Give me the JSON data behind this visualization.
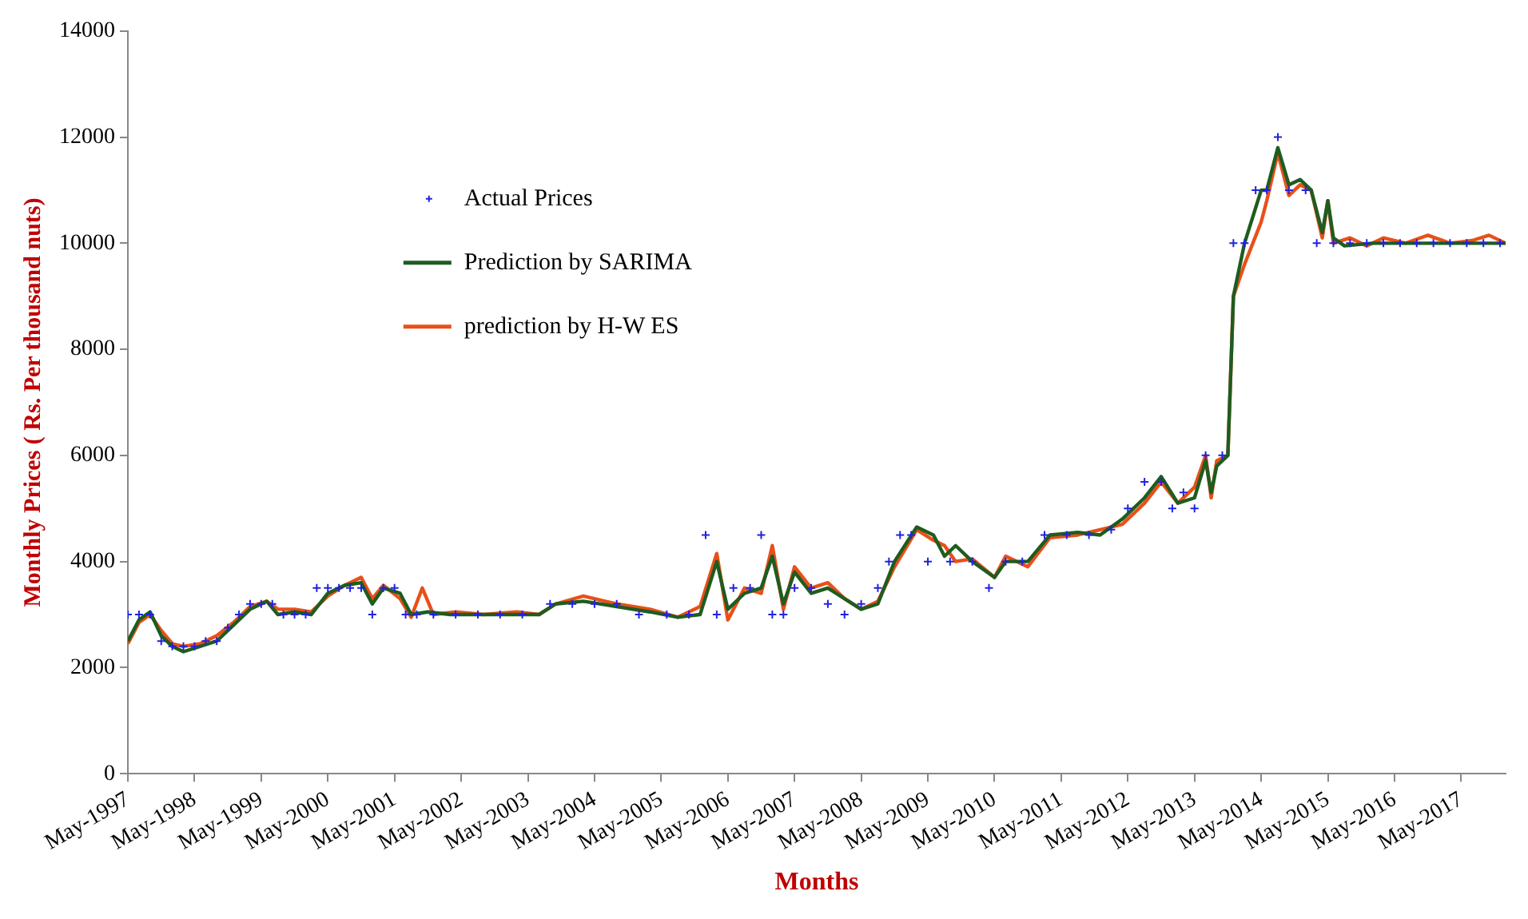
{
  "chart_data": {
    "type": "line",
    "xlabel": "Months",
    "ylabel": "Monthly Prices ( Rs. Per thousand nuts)",
    "xlim": [
      "1997-05",
      "2018-01"
    ],
    "xticks": [
      {
        "value": "1997-05",
        "label": "May-1997"
      },
      {
        "value": "1998-05",
        "label": "May-1998"
      },
      {
        "value": "1999-05",
        "label": "May-1999"
      },
      {
        "value": "2000-05",
        "label": "May-2000"
      },
      {
        "value": "2001-05",
        "label": "May-2001"
      },
      {
        "value": "2002-05",
        "label": "May-2002"
      },
      {
        "value": "2003-05",
        "label": "May-2003"
      },
      {
        "value": "2004-05",
        "label": "May-2004"
      },
      {
        "value": "2005-05",
        "label": "May-2005"
      },
      {
        "value": "2006-05",
        "label": "May-2006"
      },
      {
        "value": "2007-05",
        "label": "May-2007"
      },
      {
        "value": "2008-05",
        "label": "May-2008"
      },
      {
        "value": "2009-05",
        "label": "May-2009"
      },
      {
        "value": "2010-05",
        "label": "May-2010"
      },
      {
        "value": "2011-05",
        "label": "May-2011"
      },
      {
        "value": "2012-05",
        "label": "May-2012"
      },
      {
        "value": "2013-05",
        "label": "May-2013"
      },
      {
        "value": "2014-05",
        "label": "May-2014"
      },
      {
        "value": "2015-05",
        "label": "May-2015"
      },
      {
        "value": "2016-05",
        "label": "May-2016"
      },
      {
        "value": "2017-05",
        "label": "May-2017"
      }
    ],
    "ylim": [
      0,
      14000
    ],
    "yticks": [
      0,
      2000,
      4000,
      6000,
      8000,
      10000,
      12000,
      14000
    ],
    "grid": false,
    "legend": "top left",
    "series": [
      {
        "name": "Actual Prices",
        "type": "scatter",
        "marker": "cross",
        "color": "#2222dd",
        "x": [
          "1997-05",
          "1997-07",
          "1997-09",
          "1997-11",
          "1998-01",
          "1998-03",
          "1998-05",
          "1998-07",
          "1998-09",
          "1998-11",
          "1999-01",
          "1999-03",
          "1999-05",
          "1999-07",
          "1999-09",
          "1999-11",
          "2000-01",
          "2000-03",
          "2000-05",
          "2000-07",
          "2000-09",
          "2000-11",
          "2001-01",
          "2001-03",
          "2001-05",
          "2001-07",
          "2001-09",
          "2001-12",
          "2002-04",
          "2002-08",
          "2002-12",
          "2003-04",
          "2003-09",
          "2004-01",
          "2004-05",
          "2004-09",
          "2005-01",
          "2005-06",
          "2005-10",
          "2006-01",
          "2006-03",
          "2006-06",
          "2006-09",
          "2006-11",
          "2007-01",
          "2007-03",
          "2007-05",
          "2007-08",
          "2007-11",
          "2008-02",
          "2008-05",
          "2008-08",
          "2008-10",
          "2008-12",
          "2009-02",
          "2009-05",
          "2009-09",
          "2010-01",
          "2010-04",
          "2010-07",
          "2010-10",
          "2011-02",
          "2011-06",
          "2011-10",
          "2012-02",
          "2012-05",
          "2012-08",
          "2012-11",
          "2013-01",
          "2013-03",
          "2013-05",
          "2013-07",
          "2013-10",
          "2013-12",
          "2014-02",
          "2014-04",
          "2014-06",
          "2014-08",
          "2014-10",
          "2015-01",
          "2015-03",
          "2015-06",
          "2015-09",
          "2015-12",
          "2016-03",
          "2016-06",
          "2016-09",
          "2016-12",
          "2017-03",
          "2017-06",
          "2017-09",
          "2017-12"
        ],
        "values": [
          3000,
          3000,
          3000,
          2500,
          2400,
          2400,
          2400,
          2500,
          2500,
          2750,
          3000,
          3200,
          3200,
          3200,
          3000,
          3000,
          3000,
          3500,
          3500,
          3500,
          3500,
          3500,
          3000,
          3500,
          3500,
          3000,
          3000,
          3000,
          3000,
          3000,
          3000,
          3000,
          3200,
          3200,
          3200,
          3200,
          3000,
          3000,
          3000,
          4500,
          3000,
          3500,
          3500,
          4500,
          3000,
          3000,
          3500,
          3500,
          3200,
          3000,
          3200,
          3500,
          4000,
          4500,
          4500,
          4000,
          4000,
          4000,
          3500,
          4000,
          4000,
          4500,
          4500,
          4500,
          4600,
          5000,
          5500,
          5500,
          5000,
          5300,
          5000,
          6000,
          6000,
          10000,
          10000,
          11000,
          11000,
          12000,
          11000,
          11000,
          10000,
          10000,
          10000,
          10000,
          10000,
          10000,
          10000,
          10000,
          10000,
          10000,
          10000,
          10000
        ]
      },
      {
        "name": "Prediction by SARIMA",
        "marker": "none",
        "color": "#1f5c1f",
        "x": [
          "1997-05",
          "1997-07",
          "1997-09",
          "1997-11",
          "1998-01",
          "1998-03",
          "1998-06",
          "1998-09",
          "1998-12",
          "1999-03",
          "1999-06",
          "1999-08",
          "1999-11",
          "2000-02",
          "2000-05",
          "2000-08",
          "2000-11",
          "2001-01",
          "2001-03",
          "2001-06",
          "2001-08",
          "2001-11",
          "2002-03",
          "2002-09",
          "2003-03",
          "2003-07",
          "2003-10",
          "2004-03",
          "2004-09",
          "2005-03",
          "2005-08",
          "2005-12",
          "2006-03",
          "2006-05",
          "2006-08",
          "2006-11",
          "2007-01",
          "2007-03",
          "2007-05",
          "2007-08",
          "2007-11",
          "2008-02",
          "2008-05",
          "2008-08",
          "2008-11",
          "2009-03",
          "2009-06",
          "2009-08",
          "2009-10",
          "2010-01",
          "2010-05",
          "2010-07",
          "2010-11",
          "2011-03",
          "2011-08",
          "2011-12",
          "2012-04",
          "2012-08",
          "2012-11",
          "2013-02",
          "2013-05",
          "2013-07",
          "2013-08",
          "2013-09",
          "2013-11",
          "2013-12",
          "2014-02",
          "2014-05",
          "2014-06",
          "2014-08",
          "2014-10",
          "2014-12",
          "2015-02",
          "2015-04",
          "2015-05",
          "2015-06",
          "2015-08",
          "2016-01",
          "2017-01",
          "2018-01"
        ],
        "values": [
          2500,
          2900,
          3050,
          2600,
          2400,
          2300,
          2400,
          2500,
          2800,
          3100,
          3250,
          3000,
          3050,
          3000,
          3400,
          3550,
          3600,
          3200,
          3500,
          3400,
          3000,
          3050,
          3000,
          3000,
          3000,
          3000,
          3200,
          3250,
          3150,
          3050,
          2950,
          3000,
          4000,
          3100,
          3400,
          3500,
          4100,
          3200,
          3800,
          3400,
          3500,
          3300,
          3100,
          3200,
          4000,
          4650,
          4500,
          4100,
          4300,
          4000,
          3700,
          4000,
          4000,
          4500,
          4550,
          4500,
          4800,
          5200,
          5600,
          5100,
          5200,
          5900,
          5300,
          5800,
          6000,
          9000,
          10000,
          11000,
          11000,
          11800,
          11100,
          11200,
          11000,
          10200,
          10800,
          10100,
          9950,
          10000,
          10000,
          10000
        ]
      },
      {
        "name": "prediction by H-W ES",
        "marker": "none",
        "color": "#e8501a",
        "x": [
          "1997-05",
          "1997-07",
          "1997-09",
          "1997-11",
          "1998-01",
          "1998-03",
          "1998-06",
          "1998-09",
          "1998-12",
          "1999-03",
          "1999-06",
          "1999-08",
          "1999-11",
          "2000-02",
          "2000-05",
          "2000-08",
          "2000-11",
          "2001-01",
          "2001-03",
          "2001-06",
          "2001-08",
          "2001-10",
          "2001-12",
          "2002-04",
          "2002-09",
          "2003-03",
          "2003-07",
          "2003-10",
          "2004-03",
          "2004-09",
          "2005-03",
          "2005-08",
          "2005-12",
          "2006-03",
          "2006-05",
          "2006-08",
          "2006-11",
          "2007-01",
          "2007-03",
          "2007-05",
          "2007-08",
          "2007-11",
          "2008-02",
          "2008-05",
          "2008-08",
          "2008-11",
          "2009-03",
          "2009-06",
          "2009-08",
          "2009-10",
          "2010-01",
          "2010-05",
          "2010-07",
          "2010-11",
          "2011-03",
          "2011-08",
          "2011-12",
          "2012-04",
          "2012-08",
          "2012-11",
          "2013-02",
          "2013-05",
          "2013-07",
          "2013-08",
          "2013-09",
          "2013-11",
          "2013-12",
          "2014-02",
          "2014-05",
          "2014-06",
          "2014-08",
          "2014-10",
          "2014-12",
          "2015-02",
          "2015-04",
          "2015-05",
          "2015-06",
          "2015-09",
          "2015-12",
          "2016-03",
          "2016-07",
          "2016-11",
          "2017-03",
          "2017-07",
          "2017-10",
          "2018-01"
        ],
        "values": [
          2450,
          2850,
          3000,
          2700,
          2450,
          2400,
          2450,
          2600,
          2850,
          3150,
          3250,
          3100,
          3100,
          3050,
          3350,
          3550,
          3700,
          3300,
          3550,
          3300,
          2950,
          3500,
          3000,
          3050,
          3000,
          3050,
          3000,
          3200,
          3350,
          3200,
          3100,
          2950,
          3150,
          4150,
          2900,
          3500,
          3400,
          4300,
          3100,
          3900,
          3500,
          3600,
          3300,
          3100,
          3250,
          3900,
          4600,
          4400,
          4300,
          4000,
          4050,
          3700,
          4100,
          3900,
          4450,
          4500,
          4600,
          4700,
          5100,
          5500,
          5100,
          5400,
          6000,
          5200,
          5900,
          6000,
          9000,
          9600,
          10400,
          10800,
          11700,
          10900,
          11100,
          11000,
          10100,
          10800,
          10000,
          10100,
          9950,
          10100,
          10000,
          10150,
          10000,
          10050,
          10150,
          10000
        ]
      }
    ]
  }
}
